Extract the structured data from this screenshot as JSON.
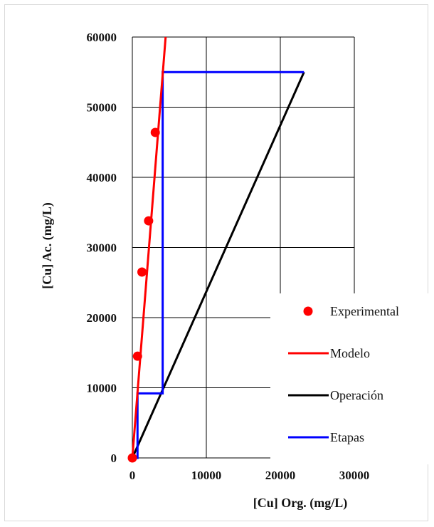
{
  "chart_data": {
    "type": "line",
    "xlabel": "[Cu]  Org. (mg/L)",
    "ylabel": "[Cu]  Ac. (mg/L)",
    "xlim": [
      0,
      30000
    ],
    "ylim": [
      0,
      60000
    ],
    "xticks": [
      0,
      10000,
      20000,
      30000
    ],
    "yticks": [
      0,
      10000,
      20000,
      30000,
      40000,
      50000,
      60000
    ],
    "grid": true,
    "legend_position": "bottom-right",
    "colors": {
      "experimental": "#ff0000",
      "modelo": "#ff0000",
      "operacion": "#000000",
      "etapas": "#0000ff",
      "grid": "#000000"
    },
    "series": [
      {
        "name": "Experimental",
        "type": "scatter",
        "x": [
          0,
          700,
          1300,
          2200,
          3100
        ],
        "y": [
          0,
          14500,
          26500,
          33800,
          46400
        ]
      },
      {
        "name": "Modelo",
        "type": "line",
        "x": [
          0,
          4500
        ],
        "y": [
          0,
          60000
        ]
      },
      {
        "name": "Operación",
        "type": "line",
        "x": [
          0,
          23200
        ],
        "y": [
          0,
          55000
        ]
      },
      {
        "name": "Etapas",
        "type": "step",
        "x": [
          0,
          700,
          700,
          4100,
          4100,
          23200
        ],
        "y": [
          0,
          0,
          9200,
          9200,
          55000,
          55000
        ]
      }
    ]
  }
}
